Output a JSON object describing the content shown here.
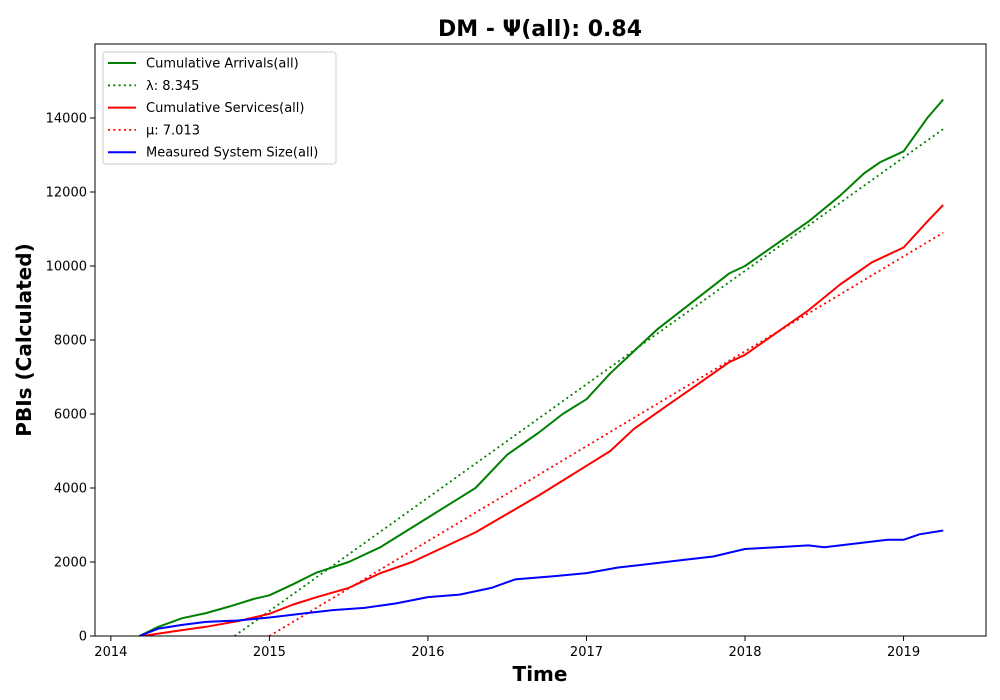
{
  "chart_data": {
    "type": "line",
    "title": "DM -  Ψ(all): 0.84",
    "xlabel": "Time",
    "ylabel": "PBIs (Calculated)",
    "xlim": [
      2013.9,
      2019.52
    ],
    "ylim": [
      0,
      16000
    ],
    "x_ticks": [
      2014,
      2015,
      2016,
      2017,
      2018,
      2019
    ],
    "x_tick_labels": [
      "2014",
      "2015",
      "2016",
      "2017",
      "2018",
      "2019"
    ],
    "y_ticks": [
      0,
      2000,
      4000,
      6000,
      8000,
      10000,
      12000,
      14000
    ],
    "y_tick_labels": [
      "0",
      "2000",
      "4000",
      "6000",
      "8000",
      "10000",
      "12000",
      "14000"
    ],
    "grid": false,
    "legend_position": "upper-left",
    "series": [
      {
        "name": "Cumulative Arrivals(all)",
        "color": "#008000",
        "style": "solid",
        "x": [
          2014.18,
          2014.3,
          2014.45,
          2014.6,
          2014.75,
          2014.9,
          2015.0,
          2015.15,
          2015.3,
          2015.5,
          2015.7,
          2015.85,
          2016.0,
          2016.15,
          2016.3,
          2016.5,
          2016.7,
          2016.85,
          2017.0,
          2017.15,
          2017.3,
          2017.45,
          2017.6,
          2017.75,
          2017.9,
          2018.0,
          2018.2,
          2018.4,
          2018.6,
          2018.75,
          2018.85,
          2019.0,
          2019.15,
          2019.25
        ],
        "y": [
          0,
          250,
          480,
          620,
          800,
          1000,
          1100,
          1400,
          1720,
          2000,
          2400,
          2800,
          3200,
          3600,
          4000,
          4900,
          5500,
          6000,
          6400,
          7100,
          7700,
          8300,
          8800,
          9300,
          9800,
          10000,
          10600,
          11200,
          11900,
          12500,
          12800,
          13100,
          14000,
          14500
        ]
      },
      {
        "name": "λ: 8.345",
        "color": "#008000",
        "style": "dotted",
        "x": [
          2014.78,
          2019.25
        ],
        "y": [
          0,
          13700
        ]
      },
      {
        "name": "Cumulative Services(all)",
        "color": "#ff0000",
        "style": "solid",
        "x": [
          2014.2,
          2014.4,
          2014.6,
          2014.8,
          2015.0,
          2015.15,
          2015.3,
          2015.5,
          2015.7,
          2015.9,
          2016.0,
          2016.15,
          2016.3,
          2016.5,
          2016.7,
          2016.85,
          2017.0,
          2017.15,
          2017.3,
          2017.5,
          2017.7,
          2017.9,
          2018.0,
          2018.2,
          2018.4,
          2018.6,
          2018.8,
          2019.0,
          2019.15,
          2019.25
        ],
        "y": [
          0,
          130,
          250,
          400,
          600,
          850,
          1050,
          1300,
          1700,
          2000,
          2200,
          2500,
          2800,
          3300,
          3800,
          4200,
          4600,
          5000,
          5600,
          6200,
          6800,
          7400,
          7600,
          8200,
          8800,
          9500,
          10100,
          10500,
          11200,
          11650
        ]
      },
      {
        "name": "μ: 7.013",
        "color": "#ff0000",
        "style": "dotted",
        "x": [
          2015.0,
          2019.25
        ],
        "y": [
          0,
          10900
        ]
      },
      {
        "name": "Measured System Size(all)",
        "color": "#0000ff",
        "style": "solid",
        "x": [
          2014.18,
          2014.3,
          2014.45,
          2014.6,
          2014.8,
          2015.0,
          2015.2,
          2015.4,
          2015.6,
          2015.8,
          2016.0,
          2016.2,
          2016.4,
          2016.55,
          2016.8,
          2017.0,
          2017.2,
          2017.4,
          2017.6,
          2017.8,
          2018.0,
          2018.2,
          2018.4,
          2018.5,
          2018.7,
          2018.9,
          2019.0,
          2019.1,
          2019.25
        ],
        "y": [
          0,
          200,
          300,
          380,
          420,
          500,
          600,
          700,
          760,
          880,
          1050,
          1120,
          1300,
          1530,
          1620,
          1700,
          1850,
          1950,
          2050,
          2150,
          2350,
          2400,
          2450,
          2400,
          2500,
          2600,
          2600,
          2750,
          2850
        ]
      }
    ]
  }
}
